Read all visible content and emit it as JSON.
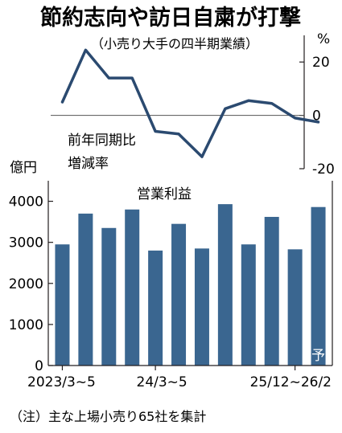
{
  "title": "節約志向や訪日自粛が打撃",
  "subtitle": "（小売り大手の四半期業績）",
  "note": "（注）主な上場小売り65社を集計",
  "chart_data": [
    {
      "type": "line",
      "series_label_lines": [
        "前年同期比",
        "増減率"
      ],
      "unit": "%",
      "ylim": [
        -20,
        30
      ],
      "y_ticks": [
        20,
        0,
        -20
      ],
      "y_tick_labels": [
        "20",
        "0",
        "-20"
      ],
      "zero_line": true,
      "color": "#2b4a70",
      "values": [
        5,
        24.5,
        14,
        14,
        -6,
        -7,
        -15.5,
        2.5,
        5.5,
        4.5,
        -1,
        -2.5
      ]
    },
    {
      "type": "bar",
      "title": "営業利益",
      "ylabel": "億円",
      "ylim": [
        0,
        4500
      ],
      "y_ticks": [
        0,
        1000,
        2000,
        3000,
        4000
      ],
      "y_tick_labels": [
        "0",
        "1000",
        "2000",
        "3000",
        "4000"
      ],
      "grid": false,
      "color": "#3a6690",
      "x_tick_labels": [
        "2023/3~5",
        "24/3~5",
        "25/12~26/2"
      ],
      "forecast_label": "予",
      "values": [
        2950,
        3700,
        3350,
        3800,
        2800,
        3450,
        2850,
        3930,
        2950,
        3620,
        2830,
        3860
      ]
    }
  ]
}
